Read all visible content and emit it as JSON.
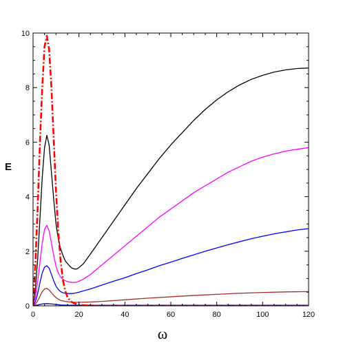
{
  "chart_data": {
    "type": "line",
    "title": "",
    "xlabel": "ω",
    "ylabel": "E",
    "xlim": [
      0,
      120
    ],
    "ylim": [
      0,
      10
    ],
    "x_ticks": [
      0,
      20,
      40,
      60,
      80,
      100,
      120
    ],
    "y_ticks": [
      0,
      2,
      4,
      6,
      8,
      10
    ],
    "x_tick_labels": [
      "0",
      "20",
      "40",
      "60",
      "80",
      "100",
      "120"
    ],
    "y_tick_labels": [
      "0",
      "2",
      "4",
      "6",
      "8",
      "10"
    ],
    "grid": false,
    "legend": "none",
    "series": [
      {
        "color": "#000000",
        "style": "solid",
        "x": [
          0,
          1,
          2,
          3,
          4,
          5,
          6,
          7,
          8,
          9,
          10,
          11,
          12,
          13,
          14,
          15,
          16,
          17,
          18,
          19,
          20,
          22,
          25,
          30,
          35,
          40,
          45,
          50,
          55,
          60,
          65,
          70,
          75,
          80,
          85,
          90,
          95,
          100,
          105,
          110,
          115,
          120
        ],
        "y": [
          0.0,
          0.6,
          1.7,
          3.2,
          4.7,
          5.8,
          6.25,
          5.9,
          4.9,
          3.9,
          3.0,
          2.45,
          2.1,
          1.85,
          1.65,
          1.55,
          1.45,
          1.38,
          1.35,
          1.35,
          1.4,
          1.55,
          1.9,
          2.5,
          3.1,
          3.7,
          4.3,
          4.85,
          5.4,
          5.9,
          6.35,
          6.8,
          7.2,
          7.55,
          7.85,
          8.1,
          8.3,
          8.45,
          8.57,
          8.65,
          8.7,
          8.72
        ]
      },
      {
        "color": "#ff00ff",
        "style": "solid",
        "x": [
          0,
          1,
          2,
          3,
          4,
          5,
          6,
          7,
          8,
          9,
          10,
          11,
          12,
          13,
          14,
          15,
          16,
          17,
          18,
          19,
          20,
          22,
          25,
          30,
          35,
          40,
          45,
          50,
          55,
          60,
          65,
          70,
          75,
          80,
          85,
          90,
          95,
          100,
          105,
          110,
          115,
          120
        ],
        "y": [
          0.0,
          0.3,
          0.9,
          1.6,
          2.3,
          2.8,
          2.95,
          2.75,
          2.3,
          1.85,
          1.45,
          1.2,
          1.05,
          0.97,
          0.92,
          0.89,
          0.87,
          0.86,
          0.86,
          0.87,
          0.9,
          0.98,
          1.15,
          1.5,
          1.85,
          2.2,
          2.55,
          2.9,
          3.25,
          3.55,
          3.85,
          4.15,
          4.4,
          4.65,
          4.9,
          5.1,
          5.3,
          5.45,
          5.57,
          5.67,
          5.74,
          5.8
        ]
      },
      {
        "color": "#0000ff",
        "style": "solid",
        "x": [
          0,
          1,
          2,
          3,
          4,
          5,
          6,
          7,
          8,
          9,
          10,
          11,
          12,
          13,
          14,
          15,
          16,
          17,
          18,
          19,
          20,
          22,
          25,
          30,
          35,
          40,
          45,
          50,
          55,
          60,
          65,
          70,
          75,
          80,
          85,
          90,
          95,
          100,
          105,
          110,
          115,
          120
        ],
        "y": [
          0.0,
          0.15,
          0.45,
          0.85,
          1.2,
          1.42,
          1.47,
          1.38,
          1.15,
          0.92,
          0.72,
          0.6,
          0.52,
          0.48,
          0.46,
          0.45,
          0.45,
          0.45,
          0.46,
          0.48,
          0.5,
          0.55,
          0.62,
          0.76,
          0.9,
          1.03,
          1.18,
          1.32,
          1.47,
          1.6,
          1.74,
          1.87,
          2.0,
          2.12,
          2.24,
          2.35,
          2.46,
          2.55,
          2.64,
          2.71,
          2.78,
          2.83
        ]
      },
      {
        "color": "#a52a2a",
        "style": "solid",
        "x": [
          0,
          1,
          2,
          3,
          4,
          5,
          6,
          7,
          8,
          9,
          10,
          11,
          12,
          13,
          14,
          15,
          16,
          18,
          20,
          25,
          30,
          40,
          50,
          60,
          70,
          80,
          90,
          100,
          110,
          120
        ],
        "y": [
          0.0,
          0.06,
          0.18,
          0.35,
          0.52,
          0.62,
          0.64,
          0.58,
          0.48,
          0.38,
          0.3,
          0.24,
          0.2,
          0.18,
          0.16,
          0.15,
          0.14,
          0.13,
          0.13,
          0.14,
          0.16,
          0.22,
          0.28,
          0.33,
          0.38,
          0.42,
          0.46,
          0.49,
          0.51,
          0.52
        ]
      },
      {
        "color": "#0000aa",
        "style": "solid",
        "x": [
          0,
          2,
          4,
          6,
          8,
          10,
          12,
          15,
          20,
          40,
          60,
          80,
          100,
          120
        ],
        "y": [
          0.0,
          0.03,
          0.07,
          0.08,
          0.07,
          0.05,
          0.03,
          0.02,
          0.02,
          0.02,
          0.02,
          0.02,
          0.02,
          0.02
        ]
      },
      {
        "color": "#ff0000",
        "style": "dashdot",
        "x": [
          0,
          1,
          2,
          3,
          4,
          5,
          6,
          7,
          8,
          9,
          10,
          11,
          12,
          13,
          14,
          15,
          16,
          17,
          18,
          19,
          20,
          22,
          24,
          26,
          28,
          30,
          40,
          60,
          80,
          100,
          120
        ],
        "y": [
          0.0,
          1.5,
          3.6,
          6.0,
          8.0,
          9.5,
          9.9,
          9.4,
          8.0,
          6.1,
          4.2,
          2.7,
          1.65,
          0.95,
          0.55,
          0.32,
          0.2,
          0.13,
          0.09,
          0.06,
          0.04,
          0.02,
          0.01,
          0.01,
          0.0,
          0.0,
          0.0,
          0.0,
          0.0,
          0.0,
          0.0
        ]
      }
    ]
  }
}
